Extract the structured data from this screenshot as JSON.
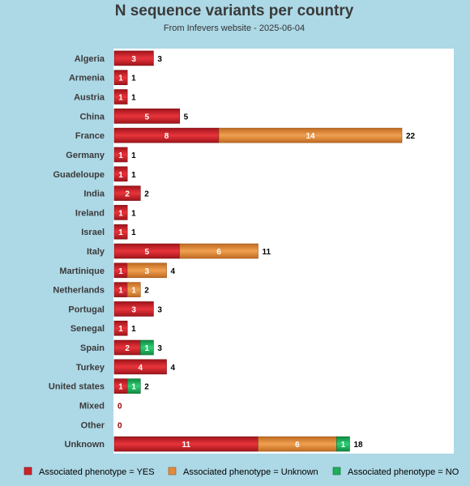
{
  "colors": {
    "background": "#add8e6",
    "plot_background": "#ffffff",
    "yes": "#cc2229",
    "unknown": "#e08b3e",
    "no": "#1fae5a"
  },
  "chart_data": {
    "type": "bar",
    "orientation": "horizontal",
    "stacked": true,
    "title": "N sequence variants per country",
    "subtitle": "From Infevers website - 2025-06-04",
    "categories": [
      "Algeria",
      "Armenia",
      "Austria",
      "China",
      "France",
      "Germany",
      "Guadeloupe",
      "India",
      "Ireland",
      "Israel",
      "Italy",
      "Martinique",
      "Netherlands",
      "Portugal",
      "Senegal",
      "Spain",
      "Turkey",
      "United states",
      "Mixed",
      "Other",
      "Unknown"
    ],
    "series": [
      {
        "name": "Associated phenotype = YES",
        "color_key": "yes",
        "values": [
          3,
          1,
          1,
          5,
          8,
          1,
          1,
          2,
          1,
          1,
          5,
          1,
          1,
          3,
          1,
          2,
          4,
          1,
          0,
          0,
          11
        ]
      },
      {
        "name": "Associated phenotype = Unknown",
        "color_key": "unknown",
        "values": [
          0,
          0,
          0,
          0,
          14,
          0,
          0,
          0,
          0,
          0,
          6,
          3,
          1,
          0,
          0,
          0,
          0,
          0,
          0,
          0,
          6
        ]
      },
      {
        "name": "Associated phenotype = NO",
        "color_key": "no",
        "values": [
          0,
          0,
          0,
          0,
          0,
          0,
          0,
          0,
          0,
          0,
          0,
          0,
          0,
          0,
          0,
          1,
          0,
          1,
          0,
          0,
          1
        ]
      }
    ],
    "totals": [
      3,
      1,
      1,
      5,
      22,
      1,
      1,
      2,
      1,
      1,
      11,
      4,
      2,
      3,
      1,
      3,
      4,
      2,
      0,
      0,
      18
    ],
    "xlim": [
      0,
      22.5
    ],
    "grid": false,
    "legend_position": "bottom"
  }
}
